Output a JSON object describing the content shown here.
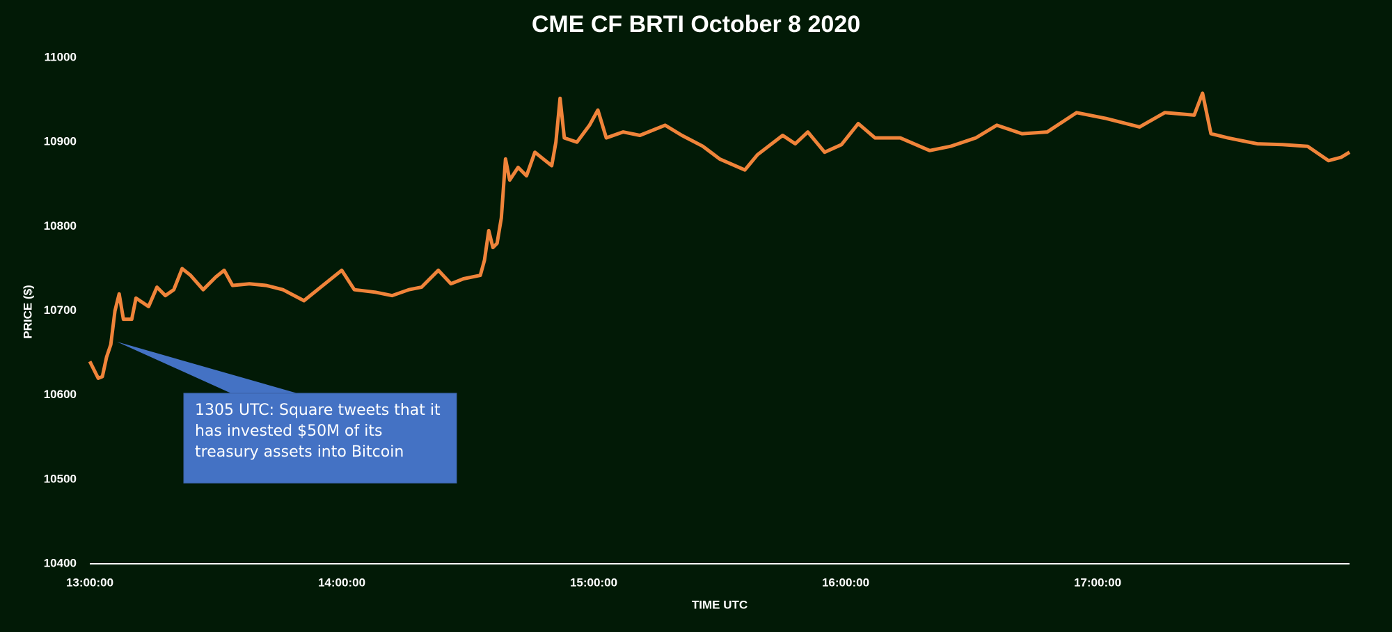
{
  "chart_data": {
    "type": "line",
    "title": "CME CF BRTI October 8 2020",
    "x_label": "TIME UTC",
    "y_label": "PRICE ($)",
    "annotation": "1305 UTC: Square tweets that it has invested $50M of its treasury assets into Bitcoin",
    "color": "#f0843a",
    "x": [
      "13:00:00",
      "13:02:00",
      "13:03:00",
      "13:04:00",
      "13:05:00",
      "13:06:00",
      "13:07:00",
      "13:08:00",
      "13:10:00",
      "13:11:00",
      "13:14:00",
      "13:16:00",
      "13:18:00",
      "13:20:00",
      "13:22:00",
      "13:24:00",
      "13:27:00",
      "13:30:00",
      "13:32:00",
      "13:34:00",
      "13:38:00",
      "13:42:00",
      "13:46:00",
      "13:51:00",
      "13:55:00",
      "14:00:00",
      "14:03:00",
      "14:08:00",
      "14:12:00",
      "14:16:00",
      "14:19:00",
      "14:23:00",
      "14:26:00",
      "14:29:00",
      "14:33:00",
      "14:34:00",
      "14:35:00",
      "14:36:00",
      "14:37:00",
      "14:38:00",
      "14:39:00",
      "14:40:00",
      "14:42:00",
      "14:44:00",
      "14:46:00",
      "14:48:00",
      "14:50:00",
      "14:51:00",
      "14:52:00",
      "14:53:00",
      "14:56:00",
      "14:59:00",
      "15:01:00",
      "15:03:00",
      "15:07:00",
      "15:11:00",
      "15:17:00",
      "15:21:00",
      "15:26:00",
      "15:30:00",
      "15:36:00",
      "15:39:00",
      "15:45:00",
      "15:48:00",
      "15:51:00",
      "15:55:00",
      "15:59:00",
      "16:03:00",
      "16:07:00",
      "16:13:00",
      "16:20:00",
      "16:25:00",
      "16:31:00",
      "16:36:00",
      "16:42:00",
      "16:48:00",
      "16:55:00",
      "17:02:00",
      "17:10:00",
      "17:16:00",
      "17:23:00",
      "17:25:00",
      "17:27:00",
      "17:31:00",
      "17:38:00",
      "17:44:00",
      "17:50:00",
      "17:55:00",
      "17:58:00",
      "18:00:00"
    ],
    "values": [
      10640,
      10620,
      10622,
      10645,
      10660,
      10700,
      10720,
      10690,
      10690,
      10715,
      10705,
      10728,
      10718,
      10725,
      10750,
      10742,
      10725,
      10740,
      10748,
      10730,
      10732,
      10730,
      10725,
      10712,
      10728,
      10748,
      10725,
      10722,
      10718,
      10725,
      10728,
      10748,
      10732,
      10738,
      10742,
      10760,
      10795,
      10775,
      10780,
      10810,
      10880,
      10855,
      10870,
      10860,
      10888,
      10880,
      10872,
      10900,
      10952,
      10905,
      10900,
      10920,
      10938,
      10905,
      10912,
      10908,
      10920,
      10908,
      10895,
      10880,
      10867,
      10885,
      10908,
      10898,
      10912,
      10888,
      10897,
      10922,
      10905,
      10905,
      10890,
      10895,
      10905,
      10920,
      10910,
      10912,
      10935,
      10928,
      10918,
      10935,
      10932,
      10958,
      10910,
      10905,
      10898,
      10897,
      10895,
      10878,
      10882,
      10888
    ],
    "xlim": [
      "13:00:00",
      "18:00:00"
    ],
    "xticks": [
      "13:00:00",
      "14:00:00",
      "15:00:00",
      "16:00:00",
      "17:00:00"
    ],
    "ylim": [
      10400,
      11000
    ],
    "yticks": [
      10400,
      10500,
      10600,
      10700,
      10800,
      10900,
      11000
    ]
  }
}
